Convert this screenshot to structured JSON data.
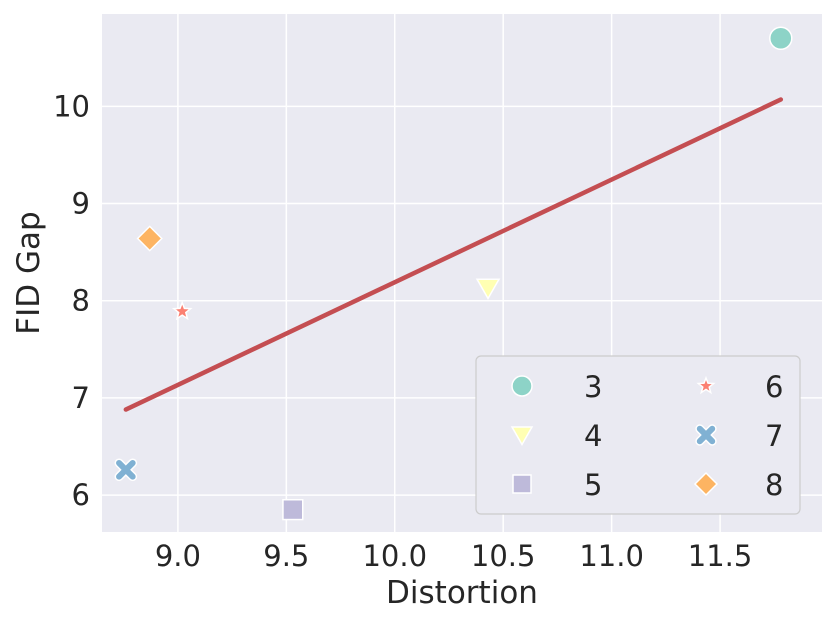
{
  "chart_data": {
    "type": "scatter",
    "xlabel": "Distortion",
    "ylabel": "FID Gap",
    "xlim": [
      8.65,
      11.97
    ],
    "ylim": [
      5.62,
      10.95
    ],
    "xticks": [
      "9.0",
      "9.5",
      "10.0",
      "10.5",
      "11.0",
      "11.5"
    ],
    "yticks": [
      "6",
      "7",
      "8",
      "9",
      "10"
    ],
    "grid": true,
    "legend_position": "bottom-right",
    "series": [
      {
        "name": "3",
        "marker": "circle",
        "color": "#8dd3c7",
        "x": 11.78,
        "y": 10.7
      },
      {
        "name": "4",
        "marker": "triangle-down",
        "color": "#ffffb3",
        "x": 10.43,
        "y": 8.13
      },
      {
        "name": "5",
        "marker": "square",
        "color": "#bebada",
        "x": 9.53,
        "y": 5.85
      },
      {
        "name": "6",
        "marker": "star",
        "color": "#fb8072",
        "x": 9.02,
        "y": 7.89
      },
      {
        "name": "7",
        "marker": "x",
        "color": "#80b1d3",
        "x": 8.76,
        "y": 6.26
      },
      {
        "name": "8",
        "marker": "diamond",
        "color": "#fdb462",
        "x": 8.87,
        "y": 8.64
      }
    ],
    "fit_line": {
      "color": "#c44e52",
      "x": [
        8.76,
        11.78
      ],
      "y": [
        6.88,
        10.07
      ]
    }
  }
}
